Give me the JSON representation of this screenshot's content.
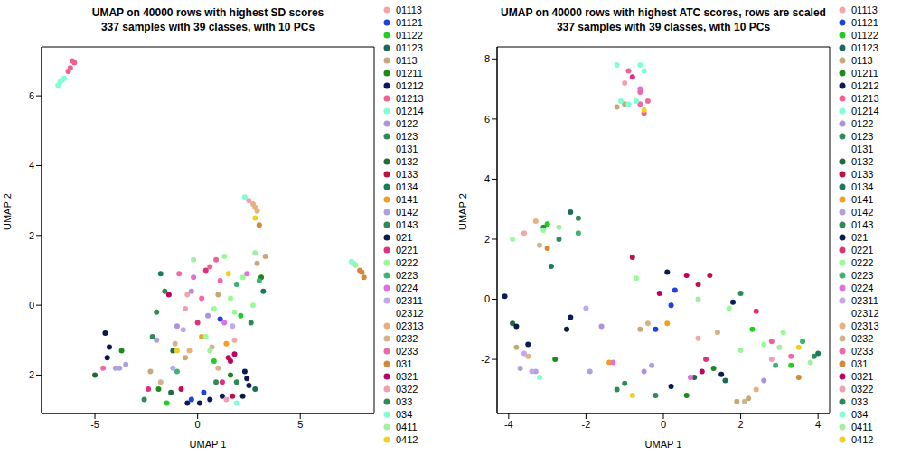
{
  "chart_data": [
    {
      "type": "scatter",
      "title": "UMAP on 40000 rows with highest SD scores\n337 samples with 39 classes, with 10 PCs",
      "x_label": "UMAP 1",
      "y_label": "UMAP 2",
      "xlim": [
        -7.6,
        8.6
      ],
      "ylim": [
        -3.1,
        7.4
      ],
      "xticks": [
        -5,
        0,
        5
      ],
      "yticks": [
        -2,
        0,
        2,
        4,
        6
      ],
      "legend": "right",
      "series": [
        {
          "name": "01113",
          "color": "#f4a6a6",
          "x": [
            -0.5,
            1.8
          ],
          "y": [
            0.3,
            -1.0
          ]
        },
        {
          "name": "01121",
          "color": "#2040e0",
          "x": [
            -0.3,
            0.3,
            1.1
          ],
          "y": [
            -2.7,
            -2.5,
            -0.4
          ]
        },
        {
          "name": "01122",
          "color": "#22cc22",
          "x": [
            -1.5,
            0.8,
            2.1
          ],
          "y": [
            -2.8,
            -1.6,
            -0.3
          ]
        },
        {
          "name": "01123",
          "color": "#1a6b5a",
          "x": [
            -1.2,
            2.8
          ],
          "y": [
            -1.3,
            -2.4
          ]
        },
        {
          "name": "0113",
          "color": "#c8a878",
          "x": [
            -2.3,
            -0.6,
            1.0,
            2.9,
            3.3
          ],
          "y": [
            -1.9,
            -1.5,
            0.3,
            1.2,
            1.4
          ]
        },
        {
          "name": "01211",
          "color": "#1a8a1a",
          "x": [
            -3.7,
            -1.9,
            1.6,
            3.1
          ],
          "y": [
            -1.3,
            -2.4,
            -2.0,
            0.8
          ]
        },
        {
          "name": "01212",
          "color": "#0a1a5a",
          "x": [
            0.1,
            0.6,
            1.2,
            2.3,
            2.5,
            -0.5
          ],
          "y": [
            -2.8,
            -2.7,
            -2.6,
            -1.9,
            -2.3,
            -2.8
          ]
        },
        {
          "name": "01213",
          "color": "#f06090",
          "x": [
            -6.1,
            -6.2,
            -6.3,
            -6.0,
            0.6,
            0.9
          ],
          "y": [
            7.0,
            6.8,
            6.7,
            6.95,
            1.1,
            1.3
          ]
        },
        {
          "name": "01214",
          "color": "#7fffd4",
          "x": [
            -6.8,
            -6.6,
            -6.5,
            2.3
          ],
          "y": [
            6.3,
            6.45,
            6.5,
            3.1
          ]
        },
        {
          "name": "0122",
          "color": "#b090e0",
          "x": [
            -1.0,
            -0.3,
            0.5
          ],
          "y": [
            -0.6,
            0.4,
            -0.3
          ]
        },
        {
          "name": "0123",
          "color": "#2e8b57",
          "x": [
            -2.0,
            1.9
          ],
          "y": [
            -0.2,
            -2.2
          ]
        },
        {
          "name": "0131",
          "color": "#ffffff",
          "x": [],
          "y": []
        },
        {
          "name": "0132",
          "color": "#1f6b3a",
          "x": [
            -5.0,
            -1.3
          ],
          "y": [
            -2.0,
            -2.5
          ]
        },
        {
          "name": "0133",
          "color": "#c0104a",
          "x": [
            1.5,
            1.7,
            -0.8
          ],
          "y": [
            -1.5,
            -2.6,
            -2.4
          ]
        },
        {
          "name": "0134",
          "color": "#1a7a5a",
          "x": [
            -1.8,
            3.2
          ],
          "y": [
            0.9,
            0.4
          ]
        },
        {
          "name": "0141",
          "color": "#f0a020",
          "x": [
            0.2,
            1.4
          ],
          "y": [
            -0.9,
            -1.1
          ]
        },
        {
          "name": "0142",
          "color": "#b0a0e0",
          "x": [
            -4.0,
            -3.8,
            -3.5,
            -2.0
          ],
          "y": [
            -1.8,
            -1.8,
            -1.7,
            -1.0
          ]
        },
        {
          "name": "0143",
          "color": "#2e8b57",
          "x": [
            -1.6,
            -2.6,
            2.6
          ],
          "y": [
            0.4,
            -2.7,
            -0.5
          ]
        },
        {
          "name": "021",
          "color": "#0a1a4a",
          "x": [
            -4.5,
            -4.3,
            -4.4,
            2.2,
            2.4
          ],
          "y": [
            -0.8,
            -1.2,
            -1.5,
            -2.6,
            -2.1
          ]
        },
        {
          "name": "0221",
          "color": "#e0307a",
          "x": [
            0.0,
            0.4,
            -2.4,
            1.2
          ],
          "y": [
            -0.5,
            1.0,
            -2.4,
            -2.2
          ]
        },
        {
          "name": "0222",
          "color": "#98fb98",
          "x": [
            0.8,
            1.6,
            2.2,
            2.7,
            1.3,
            0.4
          ],
          "y": [
            -0.1,
            0.2,
            0.8,
            0.0,
            1.4,
            -0.9
          ]
        },
        {
          "name": "0223",
          "color": "#3cb371",
          "x": [
            -1.0,
            1.9,
            3.0
          ],
          "y": [
            -1.9,
            0.6,
            0.7
          ]
        },
        {
          "name": "0224",
          "color": "#e070e0",
          "x": [
            -0.2,
            1.3,
            2.4
          ],
          "y": [
            0.8,
            -0.5,
            0.9
          ]
        },
        {
          "name": "02311",
          "color": "#c0a8f0",
          "x": [
            -1.2,
            -0.7,
            1.7
          ],
          "y": [
            -1.8,
            -0.7,
            -0.6
          ]
        },
        {
          "name": "02312",
          "color": "#ffffff",
          "x": [],
          "y": []
        },
        {
          "name": "02313",
          "color": "#e8b080",
          "x": [
            2.7,
            2.8,
            2.9,
            -0.4
          ],
          "y": [
            2.9,
            2.8,
            2.7,
            -1.3
          ]
        },
        {
          "name": "0232",
          "color": "#d2b48c",
          "x": [
            -1.8,
            -1.1,
            0.7,
            1.0
          ],
          "y": [
            -2.2,
            -1.1,
            -1.2,
            -1.8
          ]
        },
        {
          "name": "0233",
          "color": "#ee6aa7",
          "x": [
            -4.6,
            -0.9,
            0.2,
            1.1
          ],
          "y": [
            -1.8,
            0.9,
            0.2,
            0.7
          ]
        },
        {
          "name": "031",
          "color": "#d2873a",
          "x": [
            8.1,
            8.0,
            7.9,
            3.0
          ],
          "y": [
            0.8,
            0.95,
            1.0,
            2.3
          ]
        },
        {
          "name": "0321",
          "color": "#c00060",
          "x": [
            1.6,
            1.8,
            -1.4
          ],
          "y": [
            -1.6,
            -1.4,
            0.3
          ]
        },
        {
          "name": "0322",
          "color": "#f0a0b0",
          "x": [
            2.5,
            -0.6,
            1.4
          ],
          "y": [
            3.0,
            -0.1,
            -2.7
          ]
        },
        {
          "name": "033",
          "color": "#2e8b57",
          "x": [
            -2.2,
            0.9
          ],
          "y": [
            -0.9,
            -2.2
          ]
        },
        {
          "name": "034",
          "color": "#7fffd4",
          "x": [
            -6.7,
            7.5,
            7.6,
            1.9
          ],
          "y": [
            6.4,
            1.25,
            1.2,
            -2.8
          ]
        },
        {
          "name": "0411",
          "color": "#a0f0a0",
          "x": [
            7.7,
            1.8,
            2.8,
            0.6,
            -0.2
          ],
          "y": [
            1.15,
            -0.2,
            1.5,
            -1.3,
            1.3
          ]
        },
        {
          "name": "0412",
          "color": "#f0d020",
          "x": [
            2.8,
            -1.0,
            1.5
          ],
          "y": [
            2.5,
            -1.3,
            0.9
          ]
        }
      ]
    },
    {
      "type": "scatter",
      "title": "UMAP on 40000 rows with highest ATC scores, rows are scaled\n337 samples with 39 classes, with 10 PCs",
      "x_label": "UMAP 1",
      "y_label": "UMAP 2",
      "xlim": [
        -4.3,
        4.3
      ],
      "ylim": [
        -3.8,
        8.4
      ],
      "xticks": [
        -4,
        -2,
        0,
        2,
        4
      ],
      "yticks": [
        -2,
        0,
        2,
        4,
        6,
        8
      ],
      "legend": "right",
      "series": [
        {
          "name": "01113",
          "color": "#f4a6a6",
          "x": [
            -3.6,
            0.9
          ],
          "y": [
            2.2,
            -1.3
          ]
        },
        {
          "name": "01121",
          "color": "#2040e0",
          "x": [
            0.2,
            0.3,
            -0.2
          ],
          "y": [
            -0.2,
            0.3,
            -1.0
          ]
        },
        {
          "name": "01122",
          "color": "#22cc22",
          "x": [
            -3.0,
            2.3,
            3.3
          ],
          "y": [
            2.5,
            -1.0,
            -2.2
          ]
        },
        {
          "name": "01123",
          "color": "#1a6b5a",
          "x": [
            -2.4,
            1.6
          ],
          "y": [
            2.9,
            -2.7
          ]
        },
        {
          "name": "0113",
          "color": "#c8a878",
          "x": [
            -1.2,
            -1.0,
            -3.8,
            1.9,
            2.2,
            -0.6
          ],
          "y": [
            6.4,
            6.5,
            -1.6,
            -3.4,
            -3.3,
            -1.0
          ]
        },
        {
          "name": "01211",
          "color": "#1a8a1a",
          "x": [
            -2.8,
            1.3,
            0.6
          ],
          "y": [
            -2.0,
            -2.3,
            -3.2
          ]
        },
        {
          "name": "01212",
          "color": "#0a1a5a",
          "x": [
            -4.1,
            -3.5,
            0.1,
            -2.4,
            1.8
          ],
          "y": [
            0.1,
            -1.5,
            0.9,
            -0.6,
            -0.1
          ]
        },
        {
          "name": "01213",
          "color": "#f06090",
          "x": [
            -0.9,
            -0.5,
            2.8
          ],
          "y": [
            7.6,
            6.2,
            -1.4
          ]
        },
        {
          "name": "01214",
          "color": "#7fffd4",
          "x": [
            -1.1,
            -0.9,
            -3.2
          ],
          "y": [
            6.6,
            6.5,
            -2.6
          ]
        },
        {
          "name": "0122",
          "color": "#b090e0",
          "x": [
            -1.6,
            -0.5,
            2.6
          ],
          "y": [
            -0.9,
            -2.4,
            -2.7
          ]
        },
        {
          "name": "0123",
          "color": "#2e8b57",
          "x": [
            -2.7,
            -1.2,
            3.9
          ],
          "y": [
            2.0,
            -3.0,
            -1.9
          ]
        },
        {
          "name": "0131",
          "color": "#ffffff",
          "x": [],
          "y": []
        },
        {
          "name": "0132",
          "color": "#1f6b3a",
          "x": [
            -3.9,
            0.8
          ],
          "y": [
            -0.8,
            -2.6
          ]
        },
        {
          "name": "0133",
          "color": "#c0104a",
          "x": [
            0.9,
            1.2,
            -0.8
          ],
          "y": [
            0.5,
            0.8,
            1.4
          ]
        },
        {
          "name": "0134",
          "color": "#1a7a5a",
          "x": [
            -2.9,
            4.0
          ],
          "y": [
            1.1,
            -1.8
          ]
        },
        {
          "name": "0141",
          "color": "#f0a020",
          "x": [
            0.1,
            -1.4
          ],
          "y": [
            -0.8,
            -2.1
          ]
        },
        {
          "name": "0142",
          "color": "#b0a0e0",
          "x": [
            -3.7,
            -3.3,
            -1.9,
            -0.3
          ],
          "y": [
            -2.3,
            -2.4,
            -2.4,
            -2.2
          ]
        },
        {
          "name": "0143",
          "color": "#2e8b57",
          "x": [
            -3.1,
            2.0,
            -1.0
          ],
          "y": [
            2.4,
            0.2,
            -2.8
          ]
        },
        {
          "name": "021",
          "color": "#0a1a4a",
          "x": [
            -3.8,
            -2.5,
            0.2,
            1.5
          ],
          "y": [
            -0.9,
            -1.0,
            -2.9,
            -2.5
          ]
        },
        {
          "name": "0221",
          "color": "#e0307a",
          "x": [
            -0.8,
            1.1,
            2.4
          ],
          "y": [
            7.4,
            -2.0,
            -0.4
          ]
        },
        {
          "name": "0222",
          "color": "#98fb98",
          "x": [
            -3.9,
            -3.1,
            1.7,
            2.6,
            3.1,
            -0.7
          ],
          "y": [
            2.0,
            2.3,
            -0.3,
            -1.5,
            -1.1,
            0.7
          ]
        },
        {
          "name": "0223",
          "color": "#3cb371",
          "x": [
            -2.2,
            2.9,
            3.6
          ],
          "y": [
            2.2,
            -2.2,
            -1.4
          ]
        },
        {
          "name": "0224",
          "color": "#e070e0",
          "x": [
            -0.6,
            0.7,
            -1.3
          ],
          "y": [
            7.0,
            -2.6,
            -2.1
          ]
        },
        {
          "name": "02311",
          "color": "#c0a8f0",
          "x": [
            -3.4,
            -3.6,
            -2.0
          ],
          "y": [
            -2.4,
            -1.8,
            -0.3
          ]
        },
        {
          "name": "02312",
          "color": "#ffffff",
          "x": [],
          "y": []
        },
        {
          "name": "02313",
          "color": "#e8b080",
          "x": [
            -3.3,
            -3.5,
            2.4
          ],
          "y": [
            2.6,
            -1.9,
            -3.0
          ]
        },
        {
          "name": "0232",
          "color": "#d2b48c",
          "x": [
            -3.2,
            -0.4,
            1.4,
            2.1
          ],
          "y": [
            1.8,
            -0.8,
            -1.1,
            -3.4
          ]
        },
        {
          "name": "0233",
          "color": "#ee6aa7",
          "x": [
            -0.6,
            -0.4,
            -0.6,
            3.3
          ],
          "y": [
            6.5,
            6.6,
            6.9,
            -1.9
          ]
        },
        {
          "name": "031",
          "color": "#d2873a",
          "x": [
            -3.0,
            3.5
          ],
          "y": [
            1.7,
            -2.6
          ]
        },
        {
          "name": "0321",
          "color": "#c00060",
          "x": [
            0.6,
            1.0,
            -0.1
          ],
          "y": [
            0.8,
            -2.4,
            0.2
          ]
        },
        {
          "name": "0322",
          "color": "#f0a0b0",
          "x": [
            -1.0,
            2.8
          ],
          "y": [
            7.2,
            -2.0
          ]
        },
        {
          "name": "033",
          "color": "#2e8b57",
          "x": [
            -2.2,
            -0.2
          ],
          "y": [
            2.7,
            -3.2
          ]
        },
        {
          "name": "034",
          "color": "#7fffd4",
          "x": [
            -1.2,
            -0.6,
            -0.5,
            -0.7
          ],
          "y": [
            7.8,
            7.8,
            7.6,
            6.6
          ]
        },
        {
          "name": "0411",
          "color": "#a0f0a0",
          "x": [
            -2.7,
            2.0,
            3.0,
            3.8,
            0.9
          ],
          "y": [
            2.4,
            -1.7,
            -1.6,
            -2.1,
            0.0
          ]
        },
        {
          "name": "0412",
          "color": "#f0d020",
          "x": [
            -0.5,
            -0.8,
            3.5
          ],
          "y": [
            6.3,
            -3.2,
            -1.6
          ]
        }
      ]
    }
  ]
}
